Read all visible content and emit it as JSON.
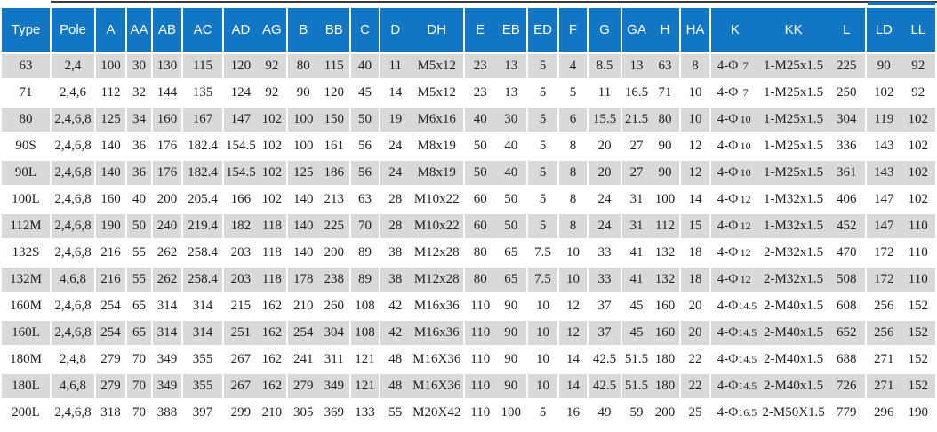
{
  "colors": {
    "header_bg": "#1176c3",
    "header_text": "#ffffff",
    "row_alt_bg": "#d9d9d9",
    "row_bg": "#ffffff",
    "body_text": "#1f1f1f",
    "top_line": "#3c3c3c"
  },
  "table": {
    "name": "motor-dimension-table",
    "column_keys": [
      "Type",
      "Pole",
      "A",
      "AA",
      "AB",
      "AC",
      "AD",
      "AG",
      "B",
      "BB",
      "C",
      "D",
      "DH",
      "E",
      "EB",
      "ED",
      "F",
      "G",
      "GA",
      "H",
      "HA",
      "K",
      "KK",
      "L",
      "LD",
      "LL"
    ],
    "header_groups": [
      {
        "key": "type",
        "label": "Type",
        "span": 1
      },
      {
        "key": "pole",
        "label": "Pole",
        "span": 1
      },
      {
        "key": "a",
        "label": "A",
        "span": 1
      },
      {
        "key": "aa",
        "label": "AA",
        "span": 1
      },
      {
        "key": "ab",
        "label": "AB",
        "span": 1
      },
      {
        "key": "ac",
        "label": "AC",
        "span": 1
      },
      {
        "key": "ad-ag",
        "labels": [
          "AD",
          "AG"
        ],
        "span": 2
      },
      {
        "key": "b-bb",
        "labels": [
          "B",
          "BB"
        ],
        "span": 2
      },
      {
        "key": "c",
        "label": "C",
        "span": 1
      },
      {
        "key": "d-dh",
        "labels": [
          "D",
          "DH"
        ],
        "span": 2
      },
      {
        "key": "e-eb",
        "labels": [
          "E",
          "EB"
        ],
        "span": 2
      },
      {
        "key": "ed",
        "label": "ED",
        "span": 1
      },
      {
        "key": "f",
        "label": "F",
        "span": 1
      },
      {
        "key": "g",
        "label": "G",
        "span": 1
      },
      {
        "key": "ga-h",
        "labels": [
          "GA",
          "H"
        ],
        "span": 2
      },
      {
        "key": "ha",
        "label": "HA",
        "span": 1
      },
      {
        "key": "k-kk-l",
        "labels": [
          "K",
          "KK",
          "L"
        ],
        "span": 3
      },
      {
        "key": "ld-ll",
        "labels": [
          "LD",
          "LL"
        ],
        "span": 2
      }
    ],
    "rows": [
      [
        "63",
        "2,4",
        "100",
        "30",
        "130",
        "115",
        "120",
        "92",
        "80",
        "115",
        "40",
        "11",
        "M5x12",
        "23",
        "13",
        "5",
        "4",
        "8.5",
        "13",
        "63",
        "8",
        "4-Φ7",
        "1-M25x1.5",
        "225",
        "90",
        "92"
      ],
      [
        "71",
        "2,4,6",
        "112",
        "32",
        "144",
        "135",
        "124",
        "92",
        "90",
        "120",
        "45",
        "14",
        "M5x12",
        "23",
        "13",
        "5",
        "5",
        "11",
        "16.5",
        "71",
        "10",
        "4-Φ7",
        "1-M25x1.5",
        "250",
        "102",
        "92"
      ],
      [
        "80",
        "2,4,6,8",
        "125",
        "34",
        "160",
        "167",
        "147",
        "102",
        "100",
        "150",
        "50",
        "19",
        "M6x16",
        "40",
        "30",
        "5",
        "6",
        "15.5",
        "21.5",
        "80",
        "10",
        "4-Φ10",
        "1-M25x1.5",
        "304",
        "119",
        "102"
      ],
      [
        "90S",
        "2,4,6,8",
        "140",
        "36",
        "176",
        "182.4",
        "154.5",
        "102",
        "100",
        "161",
        "56",
        "24",
        "M8x19",
        "50",
        "40",
        "5",
        "8",
        "20",
        "27",
        "90",
        "12",
        "4-Φ10",
        "1-M25x1.5",
        "336",
        "143",
        "102"
      ],
      [
        "90L",
        "2,4,6,8",
        "140",
        "36",
        "176",
        "182.4",
        "154.5",
        "102",
        "125",
        "186",
        "56",
        "24",
        "M8x19",
        "50",
        "40",
        "5",
        "8",
        "20",
        "27",
        "90",
        "12",
        "4-Φ10",
        "1-M25x1.5",
        "361",
        "143",
        "102"
      ],
      [
        "100L",
        "2,4,6,8",
        "160",
        "40",
        "200",
        "205.4",
        "166",
        "102",
        "140",
        "213",
        "63",
        "28",
        "M10x22",
        "60",
        "50",
        "5",
        "8",
        "24",
        "31",
        "100",
        "14",
        "4-Φ12",
        "1-M32x1.5",
        "406",
        "147",
        "102"
      ],
      [
        "112M",
        "2,4,6,8",
        "190",
        "50",
        "240",
        "219.4",
        "182",
        "118",
        "140",
        "225",
        "70",
        "28",
        "M10x22",
        "60",
        "50",
        "5",
        "8",
        "24",
        "31",
        "112",
        "15",
        "4-Φ12",
        "1-M32x1.5",
        "452",
        "147",
        "110"
      ],
      [
        "132S",
        "2,4,6,8",
        "216",
        "55",
        "262",
        "258.4",
        "203",
        "118",
        "140",
        "200",
        "89",
        "38",
        "M12x28",
        "80",
        "65",
        "7.5",
        "10",
        "33",
        "41",
        "132",
        "18",
        "4-Φ12",
        "2-M32x1.5",
        "470",
        "172",
        "110"
      ],
      [
        "132M",
        "4,6,8",
        "216",
        "55",
        "262",
        "258.4",
        "203",
        "118",
        "178",
        "238",
        "89",
        "38",
        "M12x28",
        "80",
        "65",
        "7.5",
        "10",
        "33",
        "41",
        "132",
        "18",
        "4-Φ12",
        "2-M32x1.5",
        "508",
        "172",
        "110"
      ],
      [
        "160M",
        "2,4,6,8",
        "254",
        "65",
        "314",
        "314",
        "215",
        "162",
        "210",
        "260",
        "108",
        "42",
        "M16x36",
        "110",
        "90",
        "10",
        "12",
        "37",
        "45",
        "160",
        "20",
        "4-Φ14.5",
        "2-M40x1.5",
        "608",
        "256",
        "152"
      ],
      [
        "160L",
        "2,4,6,8",
        "254",
        "65",
        "314",
        "314",
        "251",
        "162",
        "254",
        "304",
        "108",
        "42",
        "M16x36",
        "110",
        "90",
        "10",
        "12",
        "37",
        "45",
        "160",
        "20",
        "4-Φ14.5",
        "2-M40x1.5",
        "652",
        "256",
        "152"
      ],
      [
        "180M",
        "2,4,8",
        "279",
        "70",
        "349",
        "355",
        "267",
        "162",
        "241",
        "311",
        "121",
        "48",
        "M16X36",
        "110",
        "90",
        "10",
        "14",
        "42.5",
        "51.5",
        "180",
        "22",
        "4-Φ14.5",
        "2-M40x1.5",
        "688",
        "271",
        "152"
      ],
      [
        "180L",
        "4,6,8",
        "279",
        "70",
        "349",
        "355",
        "267",
        "162",
        "279",
        "349",
        "121",
        "48",
        "M16X36",
        "110",
        "90",
        "10",
        "14",
        "42.5",
        "51.5",
        "180",
        "22",
        "4-Φ14.5",
        "2-M40x1.5",
        "726",
        "271",
        "152"
      ],
      [
        "200L",
        "2,4,6,8",
        "318",
        "70",
        "388",
        "397",
        "299",
        "210",
        "305",
        "369",
        "133",
        "55",
        "M20X42",
        "110",
        "100",
        "5",
        "16",
        "49",
        "59",
        "200",
        "25",
        "4-Φ16.5",
        "2-M50X1.5",
        "779",
        "296",
        "190"
      ]
    ]
  }
}
